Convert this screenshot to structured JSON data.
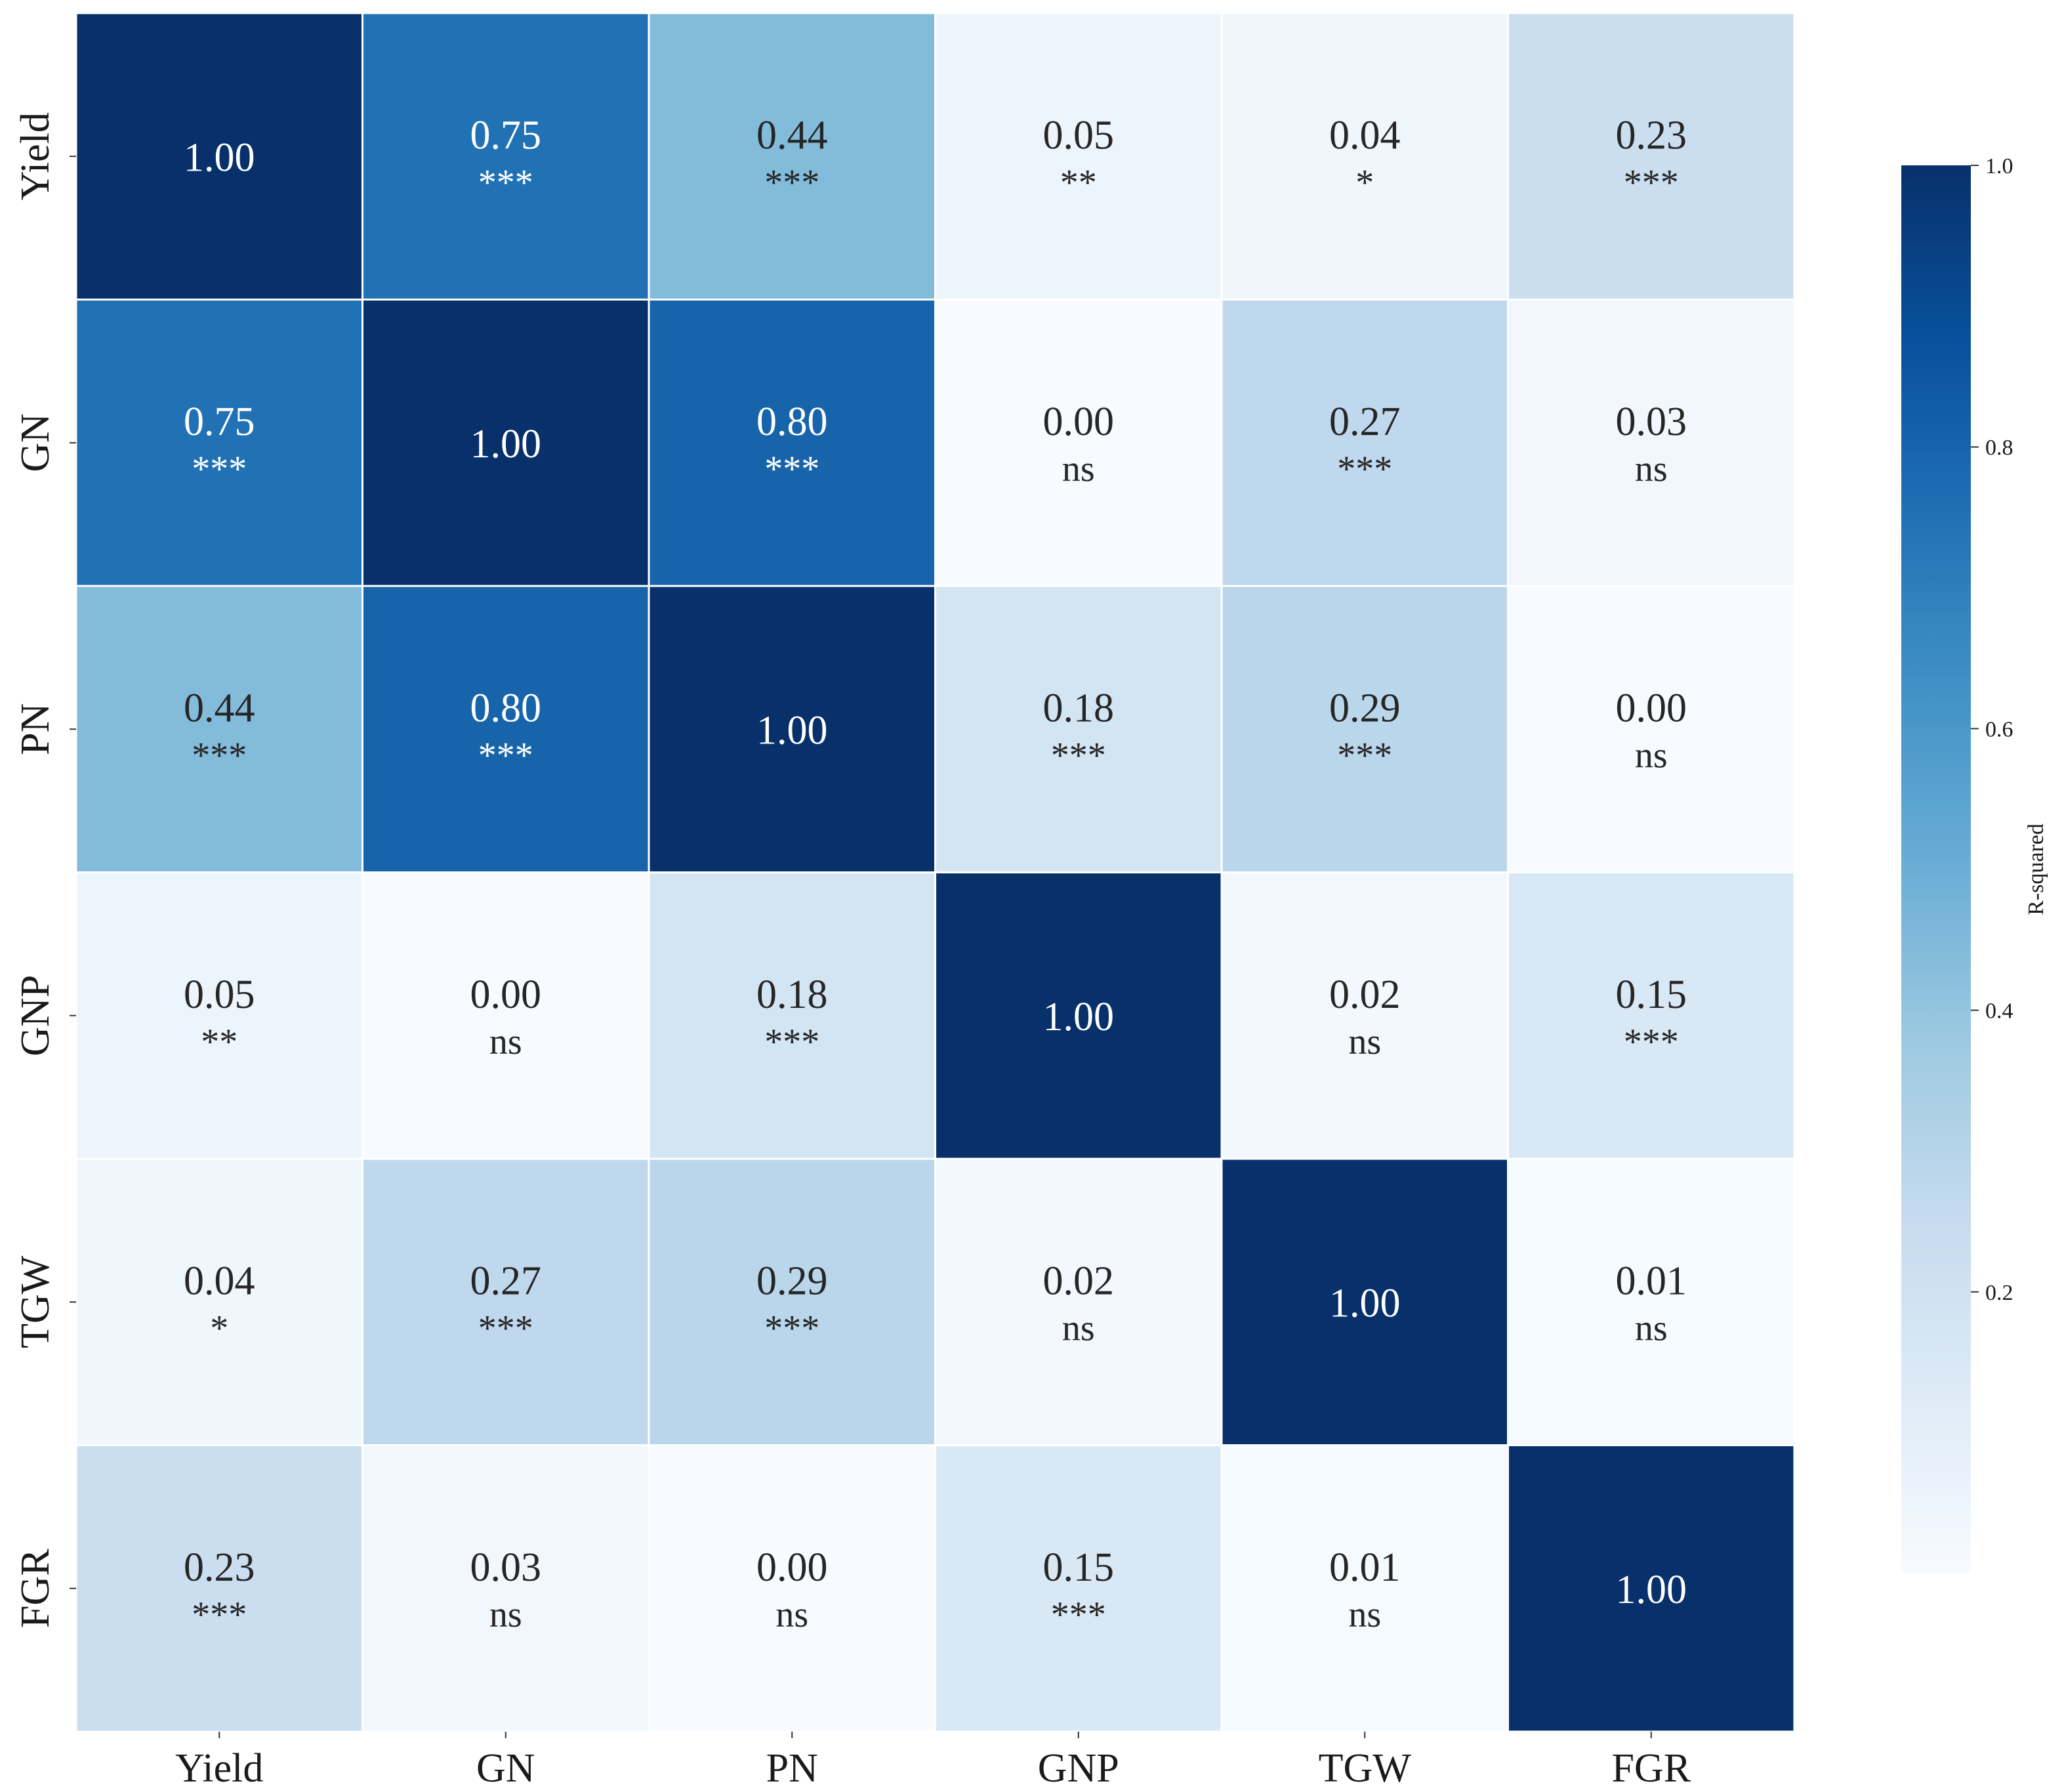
{
  "chart_data": {
    "type": "heatmap",
    "title": "",
    "xlabel": "",
    "ylabel": "",
    "x_categories": [
      "Yield",
      "GN",
      "PN",
      "GNP",
      "TGW",
      "FGR"
    ],
    "y_categories": [
      "Yield",
      "GN",
      "PN",
      "GNP",
      "TGW",
      "FGR"
    ],
    "values": [
      [
        1.0,
        0.75,
        0.44,
        0.05,
        0.04,
        0.23
      ],
      [
        0.75,
        1.0,
        0.8,
        0.0,
        0.27,
        0.03
      ],
      [
        0.44,
        0.8,
        1.0,
        0.18,
        0.29,
        0.0
      ],
      [
        0.05,
        0.0,
        0.18,
        1.0,
        0.02,
        0.15
      ],
      [
        0.04,
        0.27,
        0.29,
        0.02,
        1.0,
        0.01
      ],
      [
        0.23,
        0.03,
        0.0,
        0.15,
        0.01,
        1.0
      ]
    ],
    "value_labels": [
      [
        "1.00",
        "0.75",
        "0.44",
        "0.05",
        "0.04",
        "0.23"
      ],
      [
        "0.75",
        "1.00",
        "0.80",
        "0.00",
        "0.27",
        "0.03"
      ],
      [
        "0.44",
        "0.80",
        "1.00",
        "0.18",
        "0.29",
        "0.00"
      ],
      [
        "0.05",
        "0.00",
        "0.18",
        "1.00",
        "0.02",
        "0.15"
      ],
      [
        "0.04",
        "0.27",
        "0.29",
        "0.02",
        "1.00",
        "0.01"
      ],
      [
        "0.23",
        "0.03",
        "0.00",
        "0.15",
        "0.01",
        "1.00"
      ]
    ],
    "significance": [
      [
        "",
        "***",
        "***",
        "**",
        "*",
        "***"
      ],
      [
        "***",
        "",
        "***",
        "ns",
        "***",
        "ns"
      ],
      [
        "***",
        "***",
        "",
        "***",
        "***",
        "ns"
      ],
      [
        "**",
        "ns",
        "***",
        "",
        "ns",
        "***"
      ],
      [
        "*",
        "***",
        "***",
        "ns",
        "",
        "ns"
      ],
      [
        "***",
        "ns",
        "ns",
        "***",
        "ns",
        ""
      ]
    ],
    "colormap": "Blues",
    "colormap_stops": [
      "#f7fbff",
      "#deebf7",
      "#c6dbef",
      "#9ecae1",
      "#6baed6",
      "#4292c6",
      "#2171b5",
      "#08519c",
      "#08306b"
    ],
    "colorbar": {
      "label": "R-squared",
      "range": [
        0.0,
        1.0
      ],
      "ticks": [
        0.2,
        0.4,
        0.6,
        0.8,
        1.0
      ],
      "tick_labels": [
        "0.2",
        "0.4",
        "0.6",
        "0.8",
        "1.0"
      ],
      "position": "right"
    },
    "grid": true,
    "legend": "colorbar-right"
  }
}
